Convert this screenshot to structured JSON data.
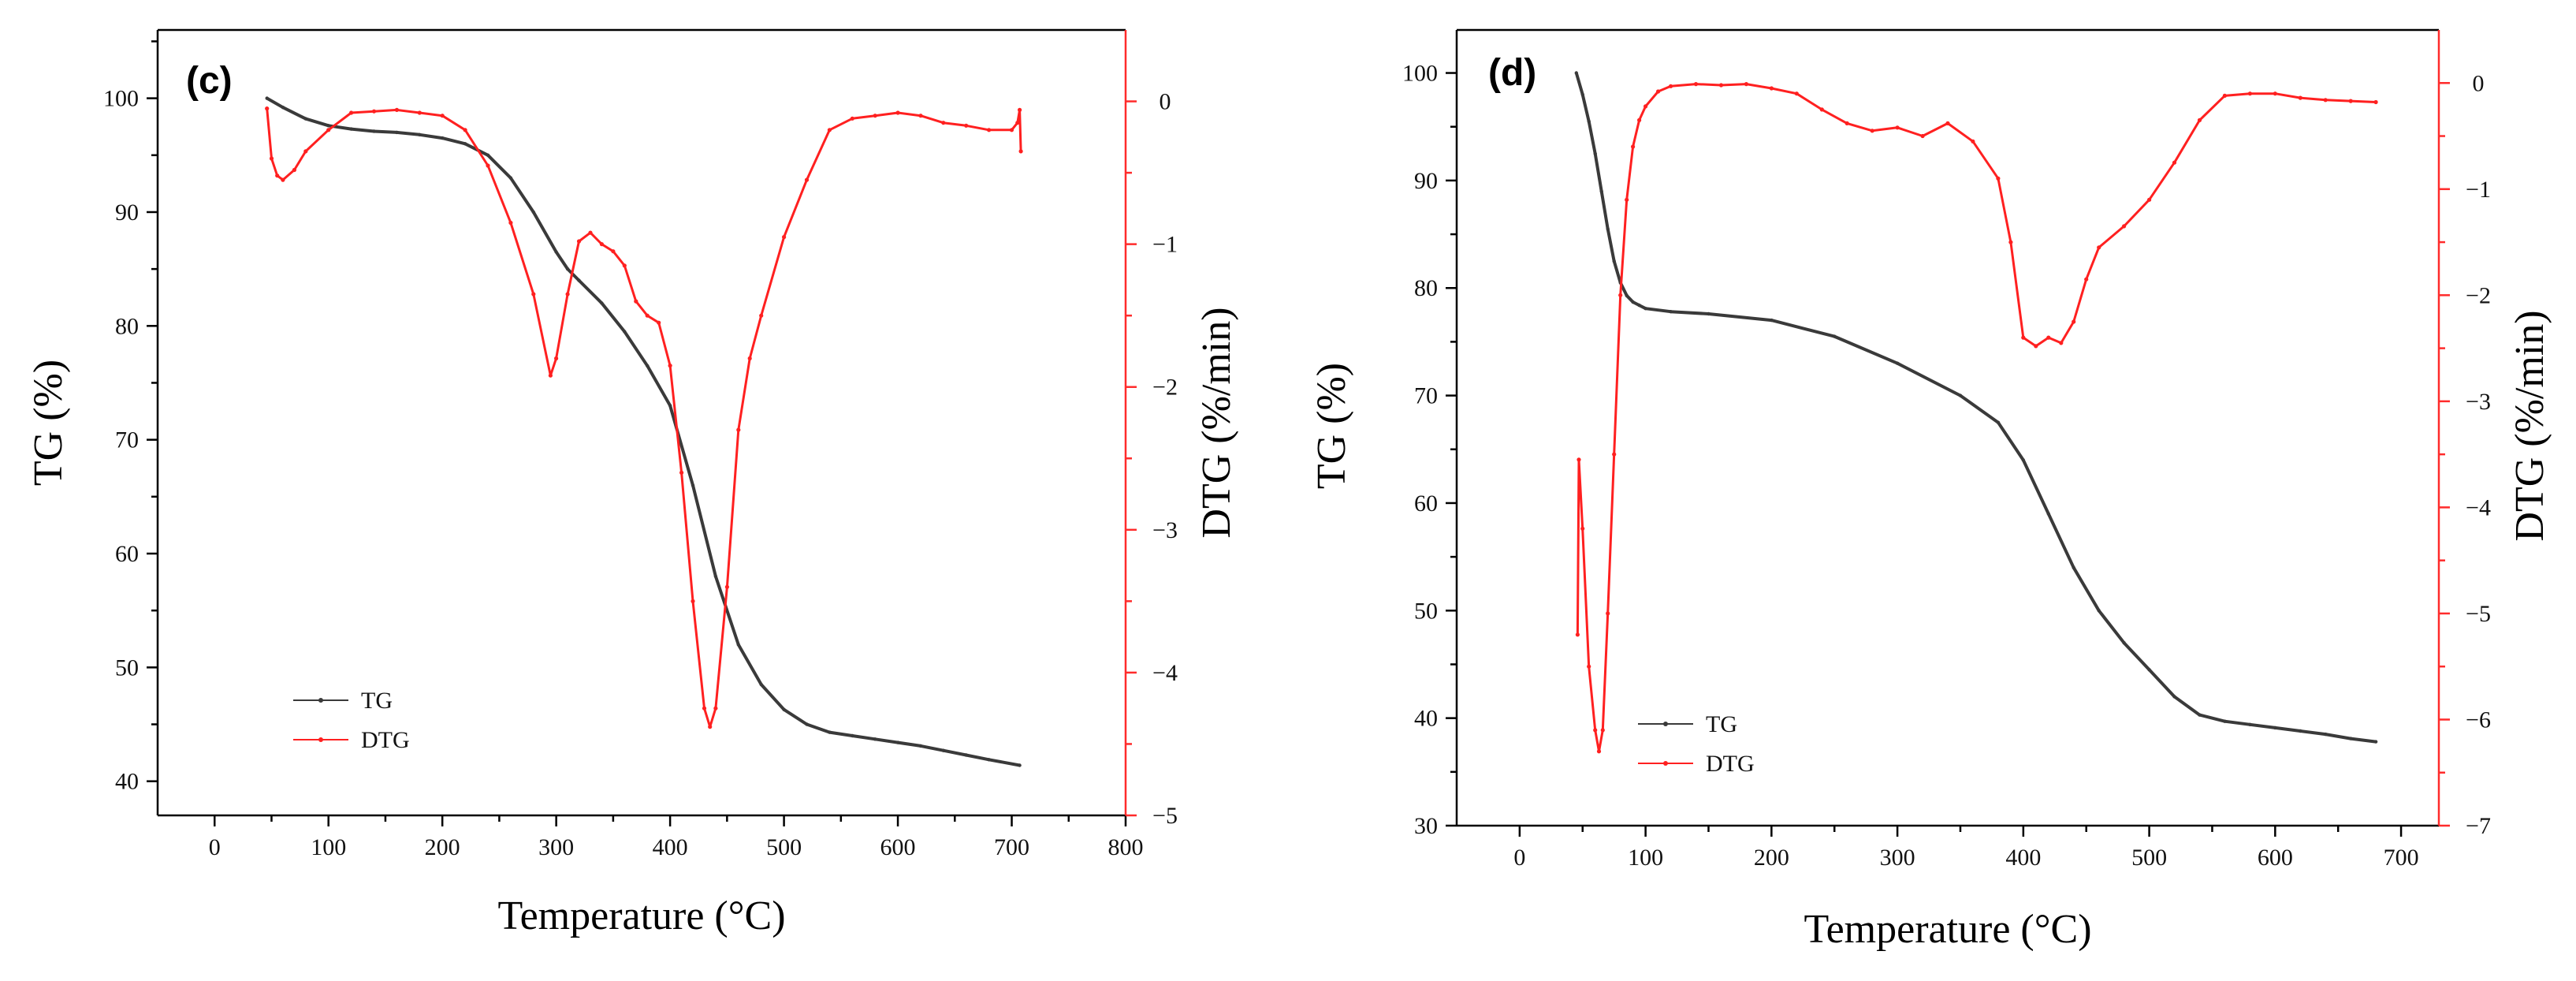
{
  "chart_data": [
    {
      "type": "line",
      "panel_label": "(c)",
      "xlabel": "Temperature (°C)",
      "ylabel_left": "TG (%)",
      "ylabel_right": "DTG (%/min)",
      "xlim": [
        -50,
        800
      ],
      "xticks": [
        0,
        100,
        200,
        300,
        400,
        500,
        600,
        700,
        800
      ],
      "ylim_left": [
        37,
        106
      ],
      "yticks_left": [
        40,
        50,
        60,
        70,
        80,
        90,
        100
      ],
      "ylim_right": [
        -5,
        0.5
      ],
      "yticks_right": [
        -5,
        -4,
        -3,
        -2,
        -1,
        0
      ],
      "legend": {
        "position": "lower-left",
        "entries": [
          "TG",
          "DTG"
        ]
      },
      "colors": {
        "TG": "#3a3a3a",
        "DTG": "#ff2020"
      },
      "series": [
        {
          "name": "TG",
          "axis": "left",
          "x": [
            46,
            60,
            80,
            100,
            120,
            140,
            160,
            180,
            200,
            220,
            240,
            260,
            280,
            300,
            310,
            320,
            340,
            360,
            380,
            400,
            420,
            440,
            460,
            480,
            500,
            520,
            540,
            560,
            580,
            600,
            620,
            640,
            660,
            680,
            707
          ],
          "y": [
            100,
            99.2,
            98.2,
            97.6,
            97.3,
            97.1,
            97.0,
            96.8,
            96.5,
            96.0,
            95.0,
            93.0,
            90.0,
            86.5,
            85.0,
            84.0,
            82.0,
            79.5,
            76.5,
            73.0,
            66.0,
            58.0,
            52.0,
            48.5,
            46.3,
            45.0,
            44.3,
            44.0,
            43.7,
            43.4,
            43.1,
            42.7,
            42.3,
            41.9,
            41.4
          ]
        },
        {
          "name": "DTG",
          "axis": "right",
          "x": [
            46,
            50,
            55,
            60,
            70,
            80,
            100,
            120,
            140,
            160,
            180,
            200,
            220,
            240,
            260,
            280,
            295,
            300,
            310,
            320,
            330,
            340,
            350,
            360,
            370,
            380,
            390,
            400,
            410,
            420,
            430,
            435,
            440,
            450,
            460,
            470,
            480,
            500,
            520,
            540,
            560,
            580,
            600,
            620,
            640,
            660,
            680,
            700,
            705,
            707,
            708
          ],
          "y": [
            -0.05,
            -0.4,
            -0.52,
            -0.55,
            -0.48,
            -0.35,
            -0.2,
            -0.08,
            -0.07,
            -0.06,
            -0.08,
            -0.1,
            -0.2,
            -0.45,
            -0.85,
            -1.35,
            -1.92,
            -1.8,
            -1.35,
            -0.98,
            -0.92,
            -1.0,
            -1.05,
            -1.15,
            -1.4,
            -1.5,
            -1.55,
            -1.85,
            -2.6,
            -3.5,
            -4.25,
            -4.38,
            -4.25,
            -3.4,
            -2.3,
            -1.8,
            -1.5,
            -0.95,
            -0.55,
            -0.2,
            -0.12,
            -0.1,
            -0.08,
            -0.1,
            -0.15,
            -0.17,
            -0.2,
            -0.2,
            -0.15,
            -0.06,
            -0.35
          ]
        }
      ]
    },
    {
      "type": "line",
      "panel_label": "(d)",
      "xlabel": "Temperature (°C)",
      "ylabel_left": "TG (%)",
      "ylabel_right": "DTG (%/min)",
      "xlim": [
        -50,
        730
      ],
      "xticks": [
        0,
        100,
        200,
        300,
        400,
        500,
        600,
        700
      ],
      "ylim_left": [
        30,
        104
      ],
      "yticks_left": [
        30,
        40,
        50,
        60,
        70,
        80,
        90,
        100
      ],
      "ylim_right": [
        -7,
        0.5
      ],
      "yticks_right": [
        -7,
        -6,
        -5,
        -4,
        -3,
        -2,
        -1,
        0
      ],
      "legend": {
        "position": "lower-left",
        "entries": [
          "TG",
          "DTG"
        ]
      },
      "colors": {
        "TG": "#3a3a3a",
        "DTG": "#ff2020"
      },
      "series": [
        {
          "name": "TG",
          "axis": "left",
          "x": [
            45,
            50,
            55,
            60,
            65,
            70,
            75,
            80,
            85,
            90,
            95,
            100,
            120,
            150,
            200,
            250,
            300,
            350,
            380,
            400,
            420,
            440,
            460,
            480,
            500,
            520,
            540,
            560,
            580,
            600,
            620,
            640,
            660,
            680
          ],
          "y": [
            100,
            98.0,
            95.5,
            92.5,
            89.0,
            85.5,
            82.5,
            80.5,
            79.3,
            78.7,
            78.4,
            78.1,
            77.8,
            77.6,
            77.0,
            75.5,
            73.0,
            70.0,
            67.5,
            64.0,
            59.0,
            54.0,
            50.0,
            47.0,
            44.5,
            42.0,
            40.3,
            39.7,
            39.4,
            39.1,
            38.8,
            38.5,
            38.1,
            37.8
          ]
        },
        {
          "name": "DTG",
          "axis": "right",
          "x": [
            46,
            47,
            50,
            55,
            60,
            63,
            66,
            70,
            75,
            80,
            85,
            90,
            95,
            100,
            110,
            120,
            140,
            160,
            180,
            200,
            220,
            240,
            260,
            280,
            300,
            320,
            340,
            360,
            380,
            390,
            400,
            410,
            420,
            430,
            440,
            450,
            460,
            480,
            500,
            520,
            540,
            560,
            580,
            600,
            620,
            640,
            660,
            680
          ],
          "y": [
            -5.2,
            -3.55,
            -4.2,
            -5.5,
            -6.1,
            -6.3,
            -6.1,
            -5.0,
            -3.5,
            -2.0,
            -1.1,
            -0.6,
            -0.35,
            -0.22,
            -0.08,
            -0.03,
            -0.01,
            -0.02,
            -0.01,
            -0.05,
            -0.1,
            -0.25,
            -0.38,
            -0.45,
            -0.42,
            -0.5,
            -0.38,
            -0.55,
            -0.9,
            -1.5,
            -2.4,
            -2.48,
            -2.4,
            -2.45,
            -2.25,
            -1.85,
            -1.55,
            -1.35,
            -1.1,
            -0.75,
            -0.35,
            -0.12,
            -0.1,
            -0.1,
            -0.14,
            -0.16,
            -0.17,
            -0.18
          ]
        }
      ]
    }
  ]
}
